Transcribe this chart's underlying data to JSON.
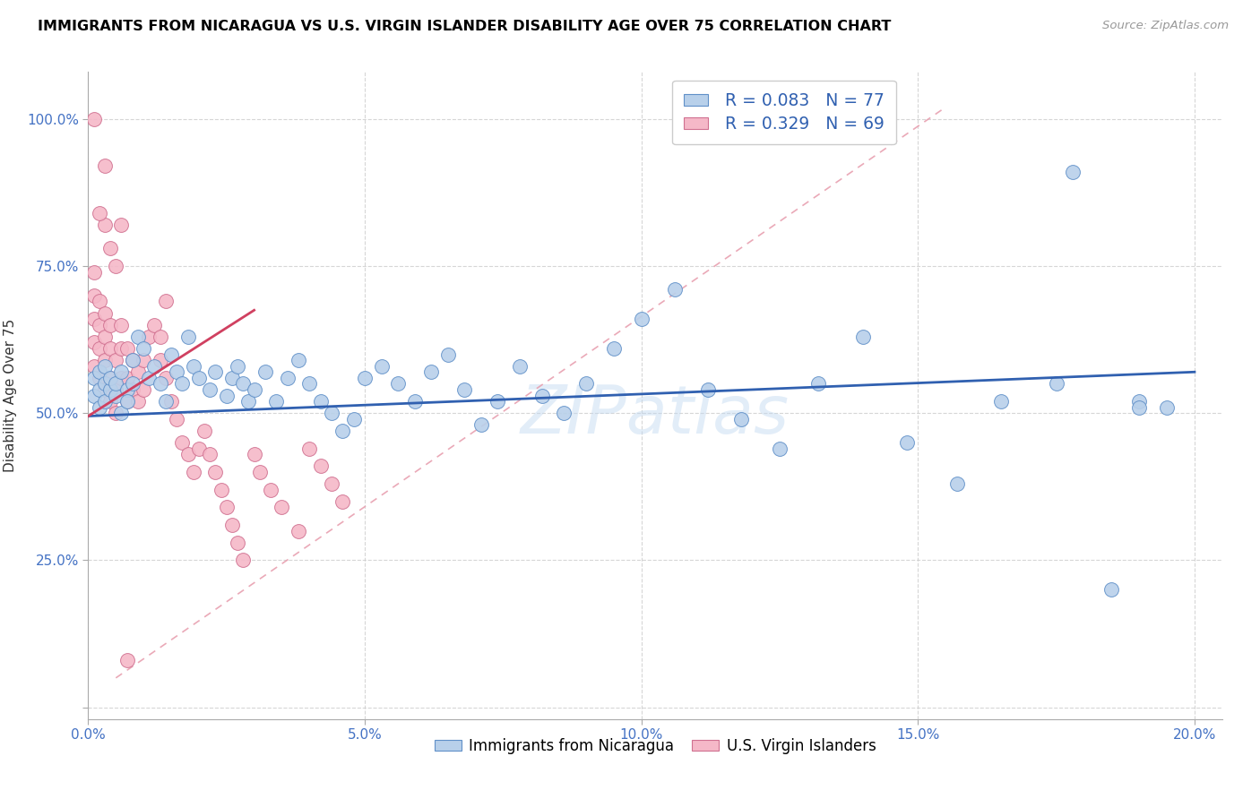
{
  "title": "IMMIGRANTS FROM NICARAGUA VS U.S. VIRGIN ISLANDER DISABILITY AGE OVER 75 CORRELATION CHART",
  "source": "Source: ZipAtlas.com",
  "ylabel": "Disability Age Over 75",
  "xlim": [
    0.0,
    0.205
  ],
  "ylim": [
    -0.02,
    1.08
  ],
  "xtick_vals": [
    0.0,
    0.05,
    0.1,
    0.15,
    0.2
  ],
  "xticklabels": [
    "0.0%",
    "5.0%",
    "10.0%",
    "15.0%",
    "20.0%"
  ],
  "ytick_vals": [
    0.0,
    0.25,
    0.5,
    0.75,
    1.0
  ],
  "yticklabels": [
    "",
    "25.0%",
    "50.0%",
    "75.0%",
    "100.0%"
  ],
  "legend_blue_r": "R = 0.083",
  "legend_blue_n": "N = 77",
  "legend_pink_r": "R = 0.329",
  "legend_pink_n": "N = 69",
  "blue_dot_color": "#b8d0ea",
  "blue_edge_color": "#6090c8",
  "pink_dot_color": "#f5b8c8",
  "pink_edge_color": "#d07090",
  "blue_line_color": "#3060b0",
  "pink_line_color": "#d04060",
  "diag_line_color": "#e8a0b0",
  "watermark": "ZIPatlas",
  "blue_line_x0": 0.0,
  "blue_line_y0": 0.495,
  "blue_line_x1": 0.2,
  "blue_line_y1": 0.57,
  "pink_line_x0": 0.0,
  "pink_line_y0": 0.495,
  "pink_line_x1": 0.03,
  "pink_line_y1": 0.675,
  "diag_line_x0": 0.005,
  "diag_line_y0": 0.05,
  "diag_line_x1": 0.155,
  "diag_line_y1": 1.02,
  "blue_x": [
    0.001,
    0.001,
    0.002,
    0.002,
    0.002,
    0.003,
    0.003,
    0.003,
    0.004,
    0.004,
    0.005,
    0.005,
    0.006,
    0.006,
    0.007,
    0.007,
    0.008,
    0.008,
    0.009,
    0.01,
    0.011,
    0.012,
    0.013,
    0.014,
    0.015,
    0.016,
    0.017,
    0.018,
    0.019,
    0.02,
    0.022,
    0.023,
    0.025,
    0.026,
    0.027,
    0.028,
    0.029,
    0.03,
    0.032,
    0.034,
    0.036,
    0.038,
    0.04,
    0.042,
    0.044,
    0.046,
    0.048,
    0.05,
    0.053,
    0.056,
    0.059,
    0.062,
    0.065,
    0.068,
    0.071,
    0.074,
    0.078,
    0.082,
    0.086,
    0.09,
    0.095,
    0.1,
    0.106,
    0.112,
    0.118,
    0.125,
    0.132,
    0.14,
    0.148,
    0.157,
    0.165,
    0.175,
    0.185,
    0.19,
    0.195,
    0.178,
    0.19
  ],
  "blue_y": [
    0.53,
    0.56,
    0.54,
    0.51,
    0.57,
    0.55,
    0.58,
    0.52,
    0.54,
    0.56,
    0.53,
    0.55,
    0.57,
    0.5,
    0.54,
    0.52,
    0.59,
    0.55,
    0.63,
    0.61,
    0.56,
    0.58,
    0.55,
    0.52,
    0.6,
    0.57,
    0.55,
    0.63,
    0.58,
    0.56,
    0.54,
    0.57,
    0.53,
    0.56,
    0.58,
    0.55,
    0.52,
    0.54,
    0.57,
    0.52,
    0.56,
    0.59,
    0.55,
    0.52,
    0.5,
    0.47,
    0.49,
    0.56,
    0.58,
    0.55,
    0.52,
    0.57,
    0.6,
    0.54,
    0.48,
    0.52,
    0.58,
    0.53,
    0.5,
    0.55,
    0.61,
    0.66,
    0.71,
    0.54,
    0.49,
    0.44,
    0.55,
    0.63,
    0.45,
    0.38,
    0.52,
    0.55,
    0.2,
    0.52,
    0.51,
    0.91,
    0.51
  ],
  "pink_x": [
    0.001,
    0.001,
    0.001,
    0.001,
    0.001,
    0.002,
    0.002,
    0.002,
    0.002,
    0.003,
    0.003,
    0.003,
    0.003,
    0.004,
    0.004,
    0.004,
    0.004,
    0.005,
    0.005,
    0.005,
    0.006,
    0.006,
    0.006,
    0.007,
    0.007,
    0.007,
    0.008,
    0.008,
    0.009,
    0.009,
    0.01,
    0.01,
    0.011,
    0.012,
    0.013,
    0.013,
    0.014,
    0.015,
    0.016,
    0.017,
    0.018,
    0.019,
    0.02,
    0.021,
    0.022,
    0.023,
    0.024,
    0.025,
    0.026,
    0.027,
    0.028,
    0.03,
    0.031,
    0.033,
    0.035,
    0.038,
    0.04,
    0.042,
    0.044,
    0.046,
    0.003,
    0.004,
    0.005,
    0.006,
    0.001,
    0.002,
    0.003,
    0.014,
    0.007
  ],
  "pink_y": [
    0.58,
    0.62,
    0.66,
    0.7,
    0.74,
    0.56,
    0.61,
    0.65,
    0.69,
    0.54,
    0.59,
    0.63,
    0.67,
    0.52,
    0.56,
    0.61,
    0.65,
    0.5,
    0.54,
    0.59,
    0.56,
    0.61,
    0.65,
    0.52,
    0.56,
    0.61,
    0.54,
    0.59,
    0.52,
    0.57,
    0.54,
    0.59,
    0.63,
    0.65,
    0.63,
    0.59,
    0.56,
    0.52,
    0.49,
    0.45,
    0.43,
    0.4,
    0.44,
    0.47,
    0.43,
    0.4,
    0.37,
    0.34,
    0.31,
    0.28,
    0.25,
    0.43,
    0.4,
    0.37,
    0.34,
    0.3,
    0.44,
    0.41,
    0.38,
    0.35,
    0.82,
    0.78,
    0.75,
    0.82,
    1.0,
    0.84,
    0.92,
    0.69,
    0.08
  ]
}
